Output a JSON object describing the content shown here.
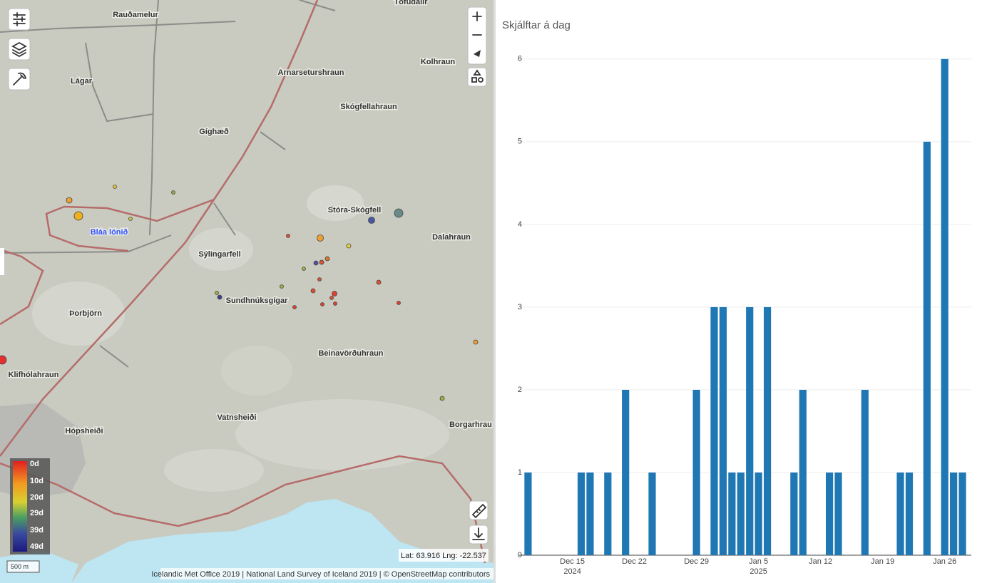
{
  "map": {
    "places": [
      "Tófudalir",
      "Rauðamelur",
      "Lágar",
      "Arnarseturshraun",
      "Kolhraun",
      "Skógfellahraun",
      "Gíghæð",
      "Stóra-Skógfell",
      "Bláa lónið",
      "Sýlingarfell",
      "Dalahraun",
      "Sundhnúksgígar",
      "Þorbjörn",
      "Beinavörðuhraun",
      "Klifhólahraun",
      "Vatnsheiði",
      "Hópsheiði",
      "Borgarhrau"
    ],
    "legend": [
      "0d",
      "10d",
      "20d",
      "29d",
      "39d",
      "49d"
    ],
    "scale": "500 m",
    "coordinates": "Lat: 63.916 Lng: -22.537",
    "attribution": "Icelandic Met Office 2019 | National Land Survey of Iceland 2019 | © OpenStreetMap contributors"
  },
  "chart_data": {
    "type": "bar",
    "title": "Skjálftar á dag",
    "x": [
      "2024-12-10",
      "2024-12-16",
      "2024-12-17",
      "2024-12-19",
      "2024-12-21",
      "2024-12-24",
      "2024-12-29",
      "2024-12-31",
      "2025-01-01",
      "2025-01-02",
      "2025-01-03",
      "2025-01-04",
      "2025-01-05",
      "2025-01-06",
      "2025-01-09",
      "2025-01-10",
      "2025-01-13",
      "2025-01-14",
      "2025-01-17",
      "2025-01-21",
      "2025-01-22",
      "2025-01-24",
      "2025-01-26",
      "2025-01-27",
      "2025-01-28"
    ],
    "values": [
      1,
      1,
      1,
      1,
      2,
      1,
      2,
      3,
      3,
      1,
      1,
      3,
      1,
      3,
      1,
      2,
      1,
      1,
      2,
      1,
      1,
      5,
      6,
      1,
      1
    ],
    "color": "#1f77b4",
    "xlim": [
      "2024-12-09",
      "2025-01-29"
    ],
    "xticks": [
      {
        "value": "2024-12-15",
        "label": [
          "Dec 15",
          "2024"
        ]
      },
      {
        "value": "2024-12-22",
        "label": "Dec 22"
      },
      {
        "value": "2024-12-29",
        "label": "Dec 29"
      },
      {
        "value": "2025-01-05",
        "label": [
          "Jan 5",
          "2025"
        ]
      },
      {
        "value": "2025-01-12",
        "label": "Jan 12"
      },
      {
        "value": "2025-01-19",
        "label": "Jan 19"
      },
      {
        "value": "2025-01-26",
        "label": "Jan 26"
      }
    ],
    "ylim": [
      0,
      6.3
    ],
    "yticks": [
      0,
      1,
      2,
      3,
      4,
      5,
      6
    ],
    "grid": true
  }
}
